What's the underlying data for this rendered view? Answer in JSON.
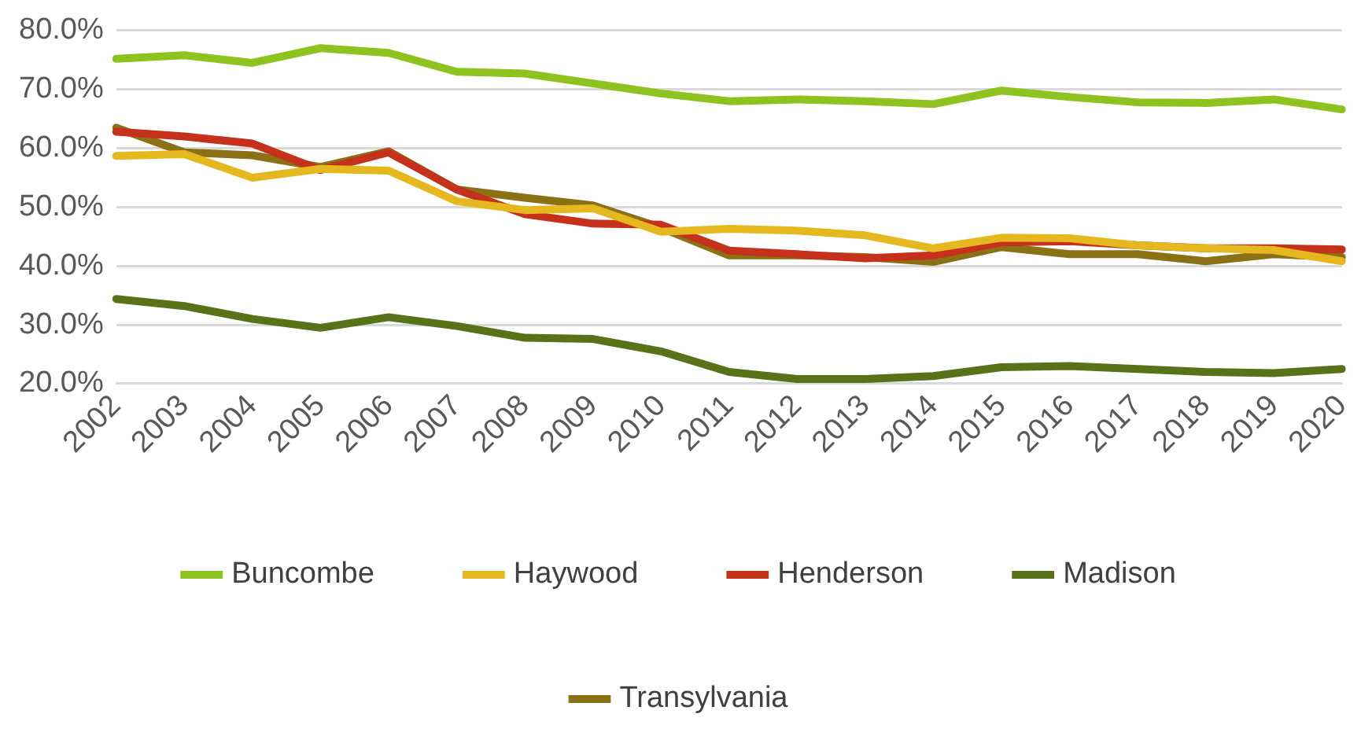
{
  "chart_data": {
    "type": "line",
    "categories": [
      "2002",
      "2003",
      "2004",
      "2005",
      "2006",
      "2007",
      "2008",
      "2009",
      "2010",
      "2011",
      "2012",
      "2013",
      "2014",
      "2015",
      "2016",
      "2017",
      "2018",
      "2019",
      "2020"
    ],
    "series": [
      {
        "name": "Buncombe",
        "color": "#8dc21f",
        "values": [
          75.2,
          75.8,
          74.5,
          77.0,
          76.2,
          73.0,
          72.7,
          71.0,
          69.3,
          68.0,
          68.3,
          68.0,
          67.5,
          69.8,
          68.7,
          67.8,
          67.7,
          68.3,
          66.6
        ]
      },
      {
        "name": "Haywood",
        "color": "#e6b820",
        "values": [
          58.7,
          59.0,
          55.0,
          56.5,
          56.2,
          51.0,
          49.5,
          49.8,
          45.8,
          46.3,
          46.0,
          45.2,
          43.0,
          44.8,
          44.7,
          43.5,
          43.0,
          42.7,
          40.8
        ]
      },
      {
        "name": "Henderson",
        "color": "#c5311a",
        "values": [
          62.8,
          62.0,
          60.8,
          56.3,
          59.3,
          53.0,
          48.8,
          47.2,
          47.0,
          42.6,
          42.0,
          41.3,
          41.8,
          44.0,
          44.2,
          43.5,
          43.0,
          43.0,
          42.8
        ]
      },
      {
        "name": "Madison",
        "color": "#577219",
        "values": [
          34.4,
          33.2,
          31.0,
          29.5,
          31.3,
          29.8,
          27.8,
          27.6,
          25.5,
          22.0,
          20.8,
          20.8,
          21.3,
          22.8,
          23.0,
          22.5,
          22.0,
          21.8,
          22.5
        ]
      },
      {
        "name": "Transylvania",
        "color": "#8b7115",
        "values": [
          63.5,
          59.3,
          58.8,
          56.8,
          59.5,
          53.0,
          51.6,
          50.3,
          46.5,
          41.8,
          41.8,
          41.5,
          40.7,
          43.2,
          42.0,
          42.0,
          40.8,
          42.0,
          41.5
        ]
      }
    ],
    "ylim": [
      20,
      80
    ],
    "yticks": [
      {
        "value": 20,
        "label": "20.0%"
      },
      {
        "value": 30,
        "label": "30.0%"
      },
      {
        "value": 40,
        "label": "40.0%"
      },
      {
        "value": 50,
        "label": "50.0%"
      },
      {
        "value": 60,
        "label": "60.0%"
      },
      {
        "value": 70,
        "label": "70.0%"
      },
      {
        "value": 80,
        "label": "80.0%"
      }
    ],
    "grid": "y",
    "legend": "bottom",
    "marker": "none",
    "line_style": "solid"
  }
}
